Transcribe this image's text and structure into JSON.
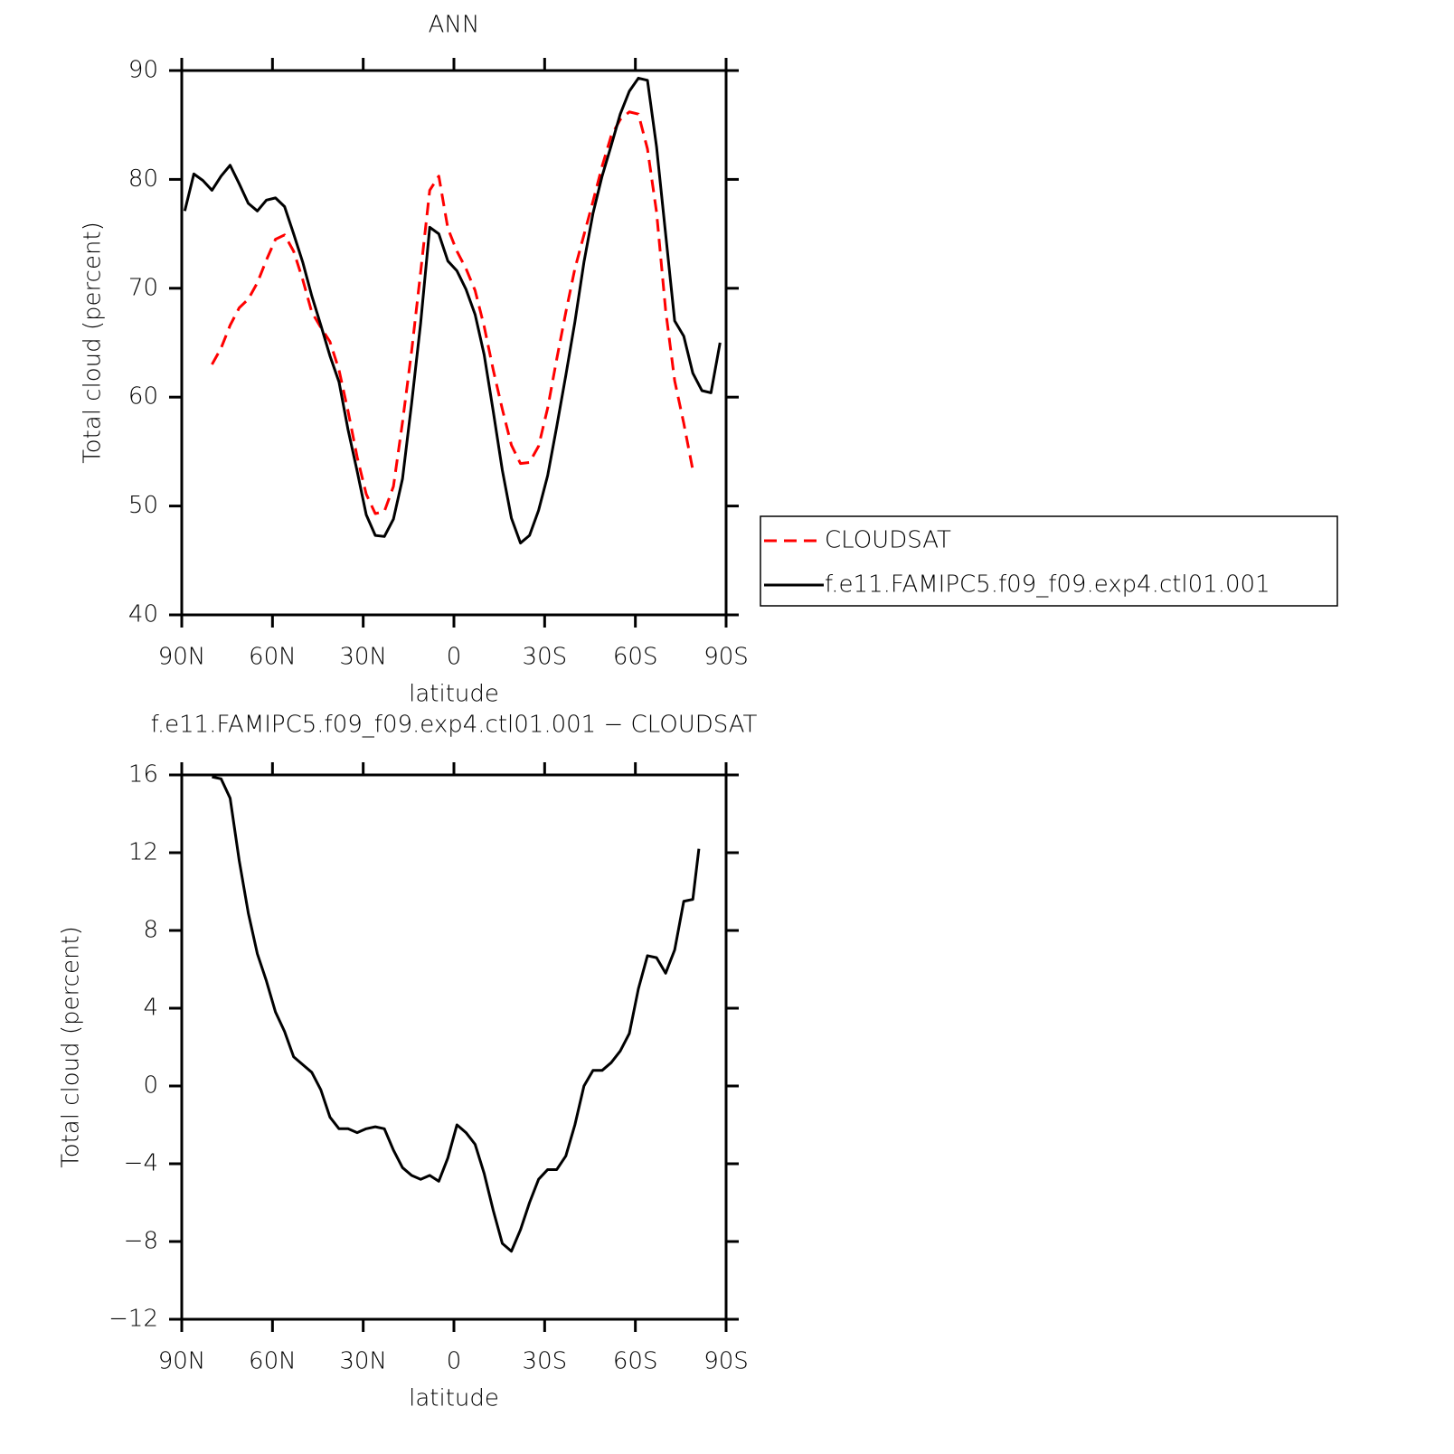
{
  "chart_data": [
    {
      "type": "line",
      "title": "ANN",
      "x_label": "latitude",
      "y_label": "Total cloud (percent)",
      "x": [
        89,
        86,
        83,
        80,
        77,
        74,
        71,
        68,
        65,
        62,
        59,
        56,
        53,
        50,
        47,
        44,
        41,
        38,
        35,
        32,
        29,
        26,
        23,
        20,
        17,
        14,
        11,
        8,
        5,
        2,
        -1,
        -4,
        -7,
        -10,
        -13,
        -16,
        -19,
        -22,
        -25,
        -28,
        -31,
        -34,
        -37,
        -40,
        -43,
        -46,
        -49,
        -52,
        -55,
        -58,
        -61,
        -64,
        -67,
        -70,
        -73,
        -76,
        -79,
        -82,
        -85,
        -88
      ],
      "series": [
        {
          "name": "CLOUDSAT",
          "color": "#ff0000",
          "linestyle": "dashed",
          "values": [
            null,
            null,
            null,
            63.0,
            64.5,
            66.6,
            68.2,
            69.0,
            70.5,
            72.6,
            74.5,
            74.9,
            73.4,
            70.8,
            67.8,
            66.4,
            65.1,
            62.5,
            58.7,
            54.5,
            51.1,
            49.3,
            49.5,
            51.8,
            57.7,
            64.2,
            71.5,
            79.0,
            80.3,
            75.5,
            73.4,
            71.8,
            69.8,
            66.5,
            62.5,
            58.9,
            55.6,
            53.9,
            54.0,
            55.5,
            59.0,
            63.5,
            67.8,
            71.8,
            74.9,
            78.0,
            81.2,
            84.0,
            85.5,
            86.2,
            86.0,
            82.8,
            77.0,
            68.0,
            61.5,
            57.6,
            53.3,
            null,
            null,
            null
          ]
        },
        {
          "name": "f.e11.FAMIPC5.f09_f09.exp4.ctl01.001",
          "color": "#000000",
          "linestyle": "solid",
          "values": [
            77.1,
            80.5,
            79.9,
            79.0,
            80.3,
            81.3,
            79.6,
            77.8,
            77.1,
            78.1,
            78.3,
            77.5,
            75.0,
            72.4,
            69.3,
            66.6,
            63.8,
            61.4,
            57.0,
            53.2,
            49.2,
            47.3,
            47.2,
            48.8,
            52.5,
            59.4,
            66.8,
            75.6,
            75.0,
            72.5,
            71.6,
            69.9,
            67.6,
            63.9,
            58.7,
            53.3,
            48.9,
            46.6,
            47.3,
            49.6,
            52.8,
            57.3,
            62.0,
            66.9,
            72.4,
            76.9,
            80.3,
            83.1,
            86.0,
            88.1,
            89.3,
            89.1,
            83.0,
            75.0,
            67.0,
            65.6,
            62.2,
            60.6,
            60.4,
            65.0
          ]
        }
      ],
      "xlim": [
        90,
        -90
      ],
      "xticks": [
        {
          "value": 90,
          "label": "90N"
        },
        {
          "value": 60,
          "label": "60N"
        },
        {
          "value": 30,
          "label": "30N"
        },
        0,
        {
          "value": -30,
          "label": "30S"
        },
        {
          "value": -60,
          "label": "60S"
        },
        {
          "value": -90,
          "label": "90S"
        }
      ],
      "ylim": [
        40,
        90
      ],
      "yticks": [
        40,
        50,
        60,
        70,
        80,
        90
      ],
      "legend": "right"
    },
    {
      "type": "line",
      "title": "f.e11.FAMIPC5.f09_f09.exp4.ctl01.001 − CLOUDSAT",
      "x_label": "latitude",
      "y_label": "Total cloud (percent)",
      "x": [
        80,
        77,
        74,
        71,
        68,
        65,
        62,
        59,
        56,
        53,
        50,
        47,
        44,
        41,
        38,
        35,
        32,
        29,
        26,
        23,
        20,
        17,
        14,
        11,
        8,
        5,
        2,
        -1,
        -4,
        -7,
        -10,
        -13,
        -16,
        -19,
        -22,
        -25,
        -28,
        -31,
        -34,
        -37,
        -40,
        -43,
        -46,
        -49,
        -52,
        -55,
        -58,
        -61,
        -64,
        -67,
        -70,
        -73,
        -76,
        -79,
        -81
      ],
      "series": [
        {
          "color": "#000000",
          "linestyle": "solid",
          "values": [
            15.9,
            15.8,
            14.8,
            11.6,
            8.9,
            6.8,
            5.4,
            3.8,
            2.8,
            1.5,
            1.1,
            0.7,
            -0.2,
            -1.6,
            -2.2,
            -2.2,
            -2.4,
            -2.2,
            -2.1,
            -2.2,
            -3.3,
            -4.2,
            -4.6,
            -4.8,
            -4.6,
            -4.9,
            -3.7,
            -2.0,
            -2.4,
            -3.0,
            -4.5,
            -6.4,
            -8.1,
            -8.5,
            -7.4,
            -6.0,
            -4.8,
            -4.3,
            -4.3,
            -3.6,
            -2.0,
            0.0,
            0.8,
            0.8,
            1.2,
            1.8,
            2.7,
            5.0,
            6.7,
            6.6,
            5.8,
            7.0,
            9.5,
            9.6,
            12.2
          ]
        }
      ],
      "xlim": [
        90,
        -90
      ],
      "xticks": [
        {
          "value": 90,
          "label": "90N"
        },
        {
          "value": 60,
          "label": "60N"
        },
        {
          "value": 30,
          "label": "30N"
        },
        0,
        {
          "value": -30,
          "label": "30S"
        },
        {
          "value": -60,
          "label": "60S"
        },
        {
          "value": -90,
          "label": "90S"
        }
      ],
      "ylim": [
        -12,
        16
      ],
      "yticks": [
        {
          "value": -12,
          "label": "−12"
        },
        {
          "value": -8,
          "label": "−8"
        },
        {
          "value": -4,
          "label": "−4"
        },
        0,
        4,
        8,
        12,
        16
      ]
    }
  ]
}
